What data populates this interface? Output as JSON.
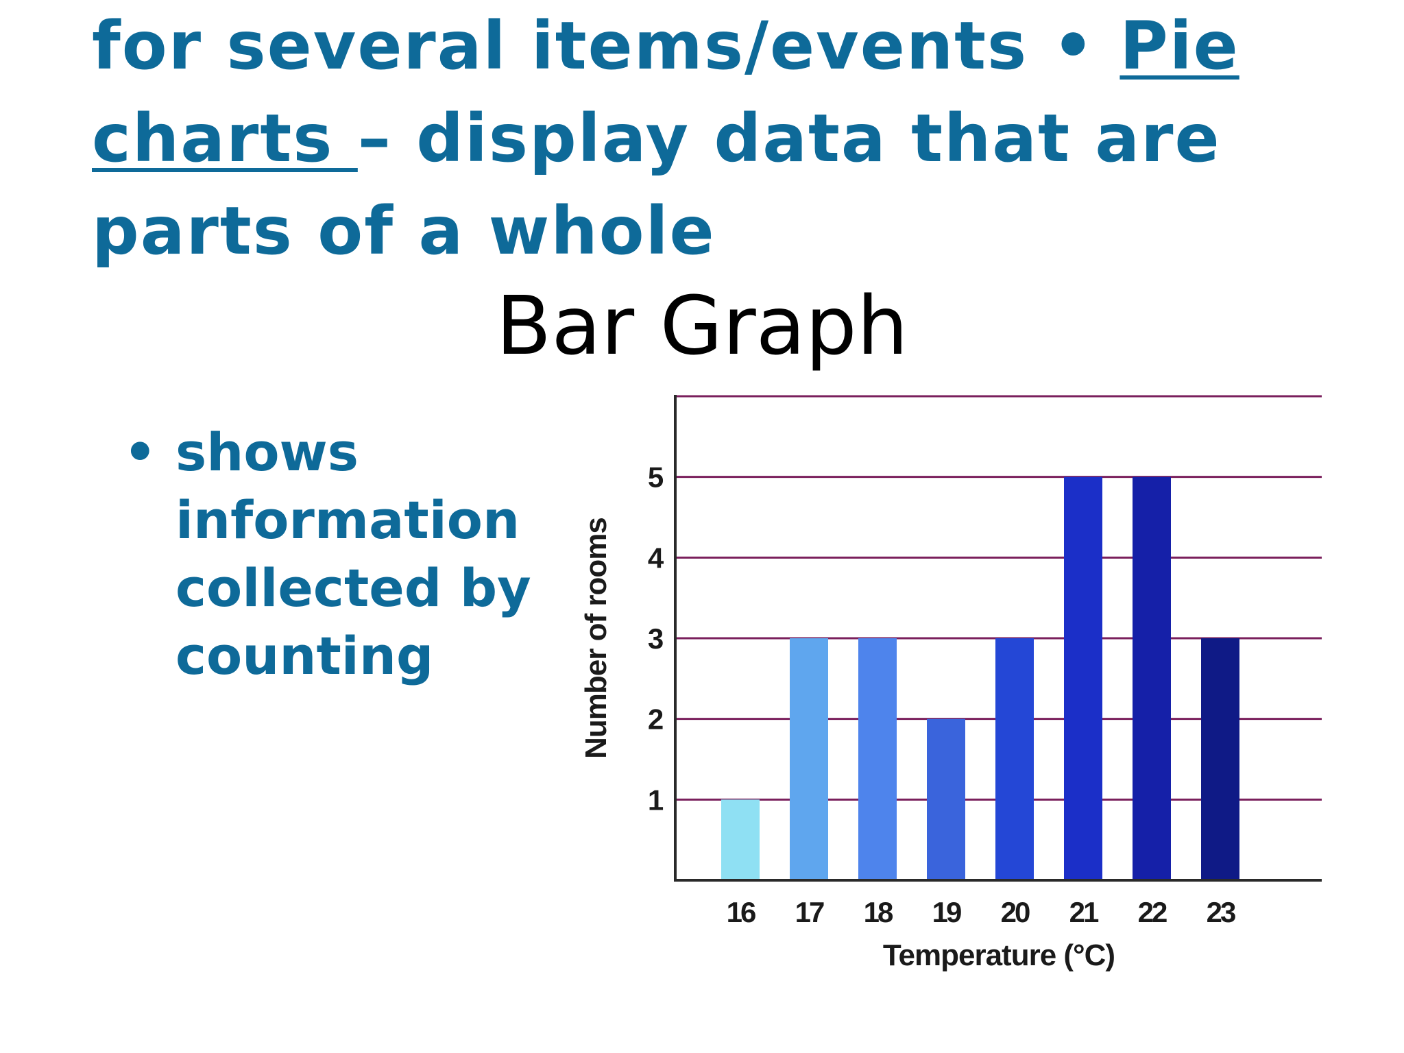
{
  "slide": {
    "heading_part1": "for several items/events • ",
    "heading_link1": "Pie",
    "heading_link2": "charts ",
    "heading_part2": "– display data that  are parts of a whole",
    "title": "Bar Graph",
    "bullet_symbol": "•",
    "bullet_text": "shows information collected by counting"
  },
  "colors": {
    "heading_text": "#0e6a99",
    "gridline": "#7a1f5c",
    "bars": [
      "#8fe0f3",
      "#5fa6ee",
      "#4e84ec",
      "#3a64dc",
      "#2447d6",
      "#1b2fc8",
      "#1520a8",
      "#0f1a86"
    ]
  },
  "chart_data": {
    "type": "bar",
    "categories": [
      "16",
      "17",
      "18",
      "19",
      "20",
      "21",
      "22",
      "23"
    ],
    "values": [
      1,
      3,
      3,
      2,
      3,
      5,
      5,
      3
    ],
    "xlabel": "Temperature (°C)",
    "ylabel": "Number of rooms",
    "ylim": [
      0,
      6
    ],
    "yticks": [
      "1",
      "2",
      "3",
      "4",
      "5"
    ],
    "grid": true
  }
}
